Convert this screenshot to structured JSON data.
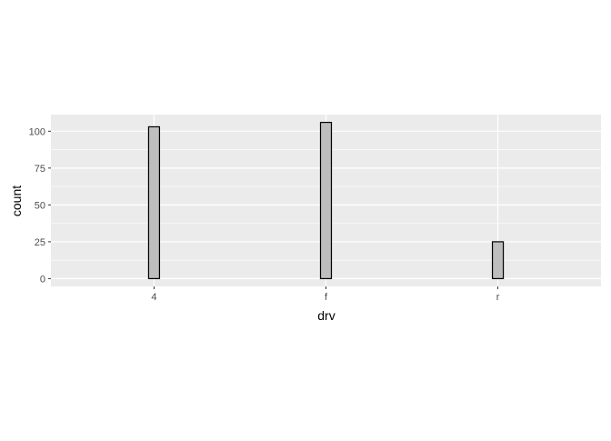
{
  "chart_data": {
    "type": "bar",
    "title": "",
    "xlabel": "drv",
    "ylabel": "count",
    "categories": [
      "4",
      "f",
      "r"
    ],
    "values": [
      103,
      106,
      25
    ],
    "ylim": [
      -5.3,
      111.3
    ],
    "yticks": [
      0,
      25,
      50,
      75,
      100
    ],
    "grid": true,
    "legend": "none",
    "colors": {
      "panel": "#EBEBEB",
      "grid": "#FFFFFF",
      "bar_fill": "#BEBEBE",
      "bar_outline": "#000000",
      "tick_label": "#4D4D4D",
      "axis_title": "#000000"
    }
  }
}
